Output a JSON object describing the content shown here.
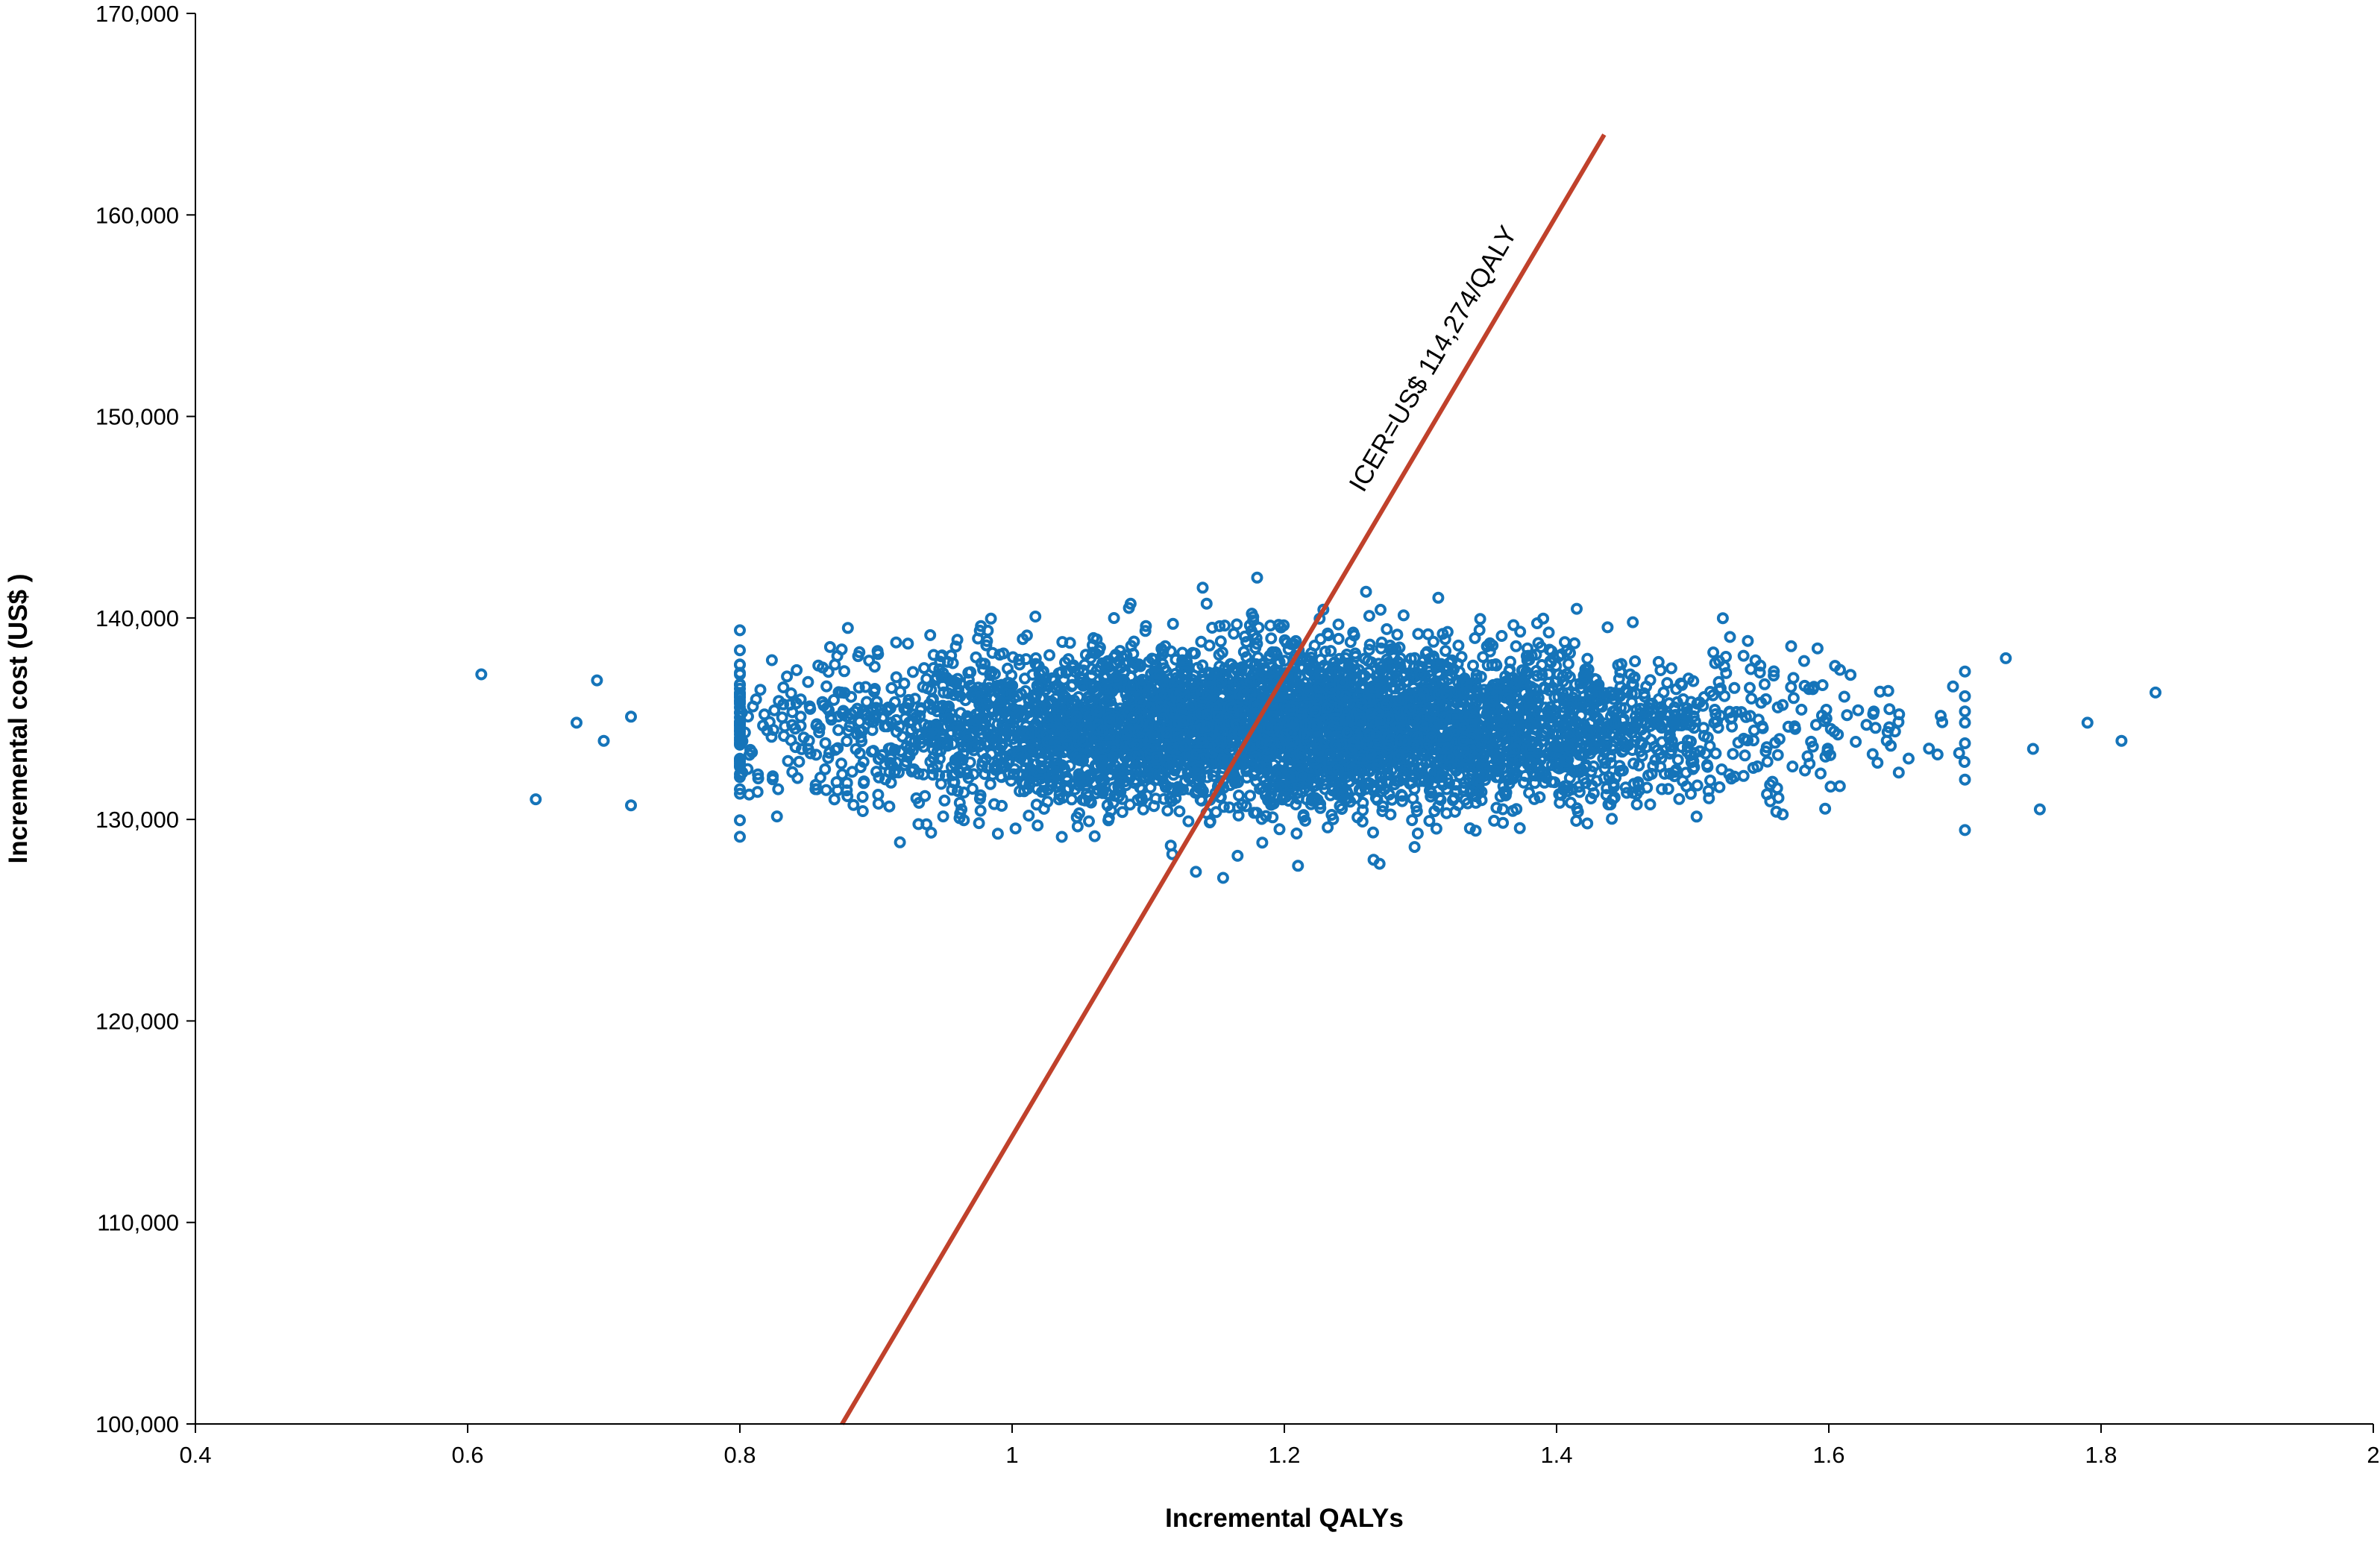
{
  "chart_data": {
    "type": "scatter",
    "title": "",
    "xlabel": "Incremental QALYs",
    "ylabel": "Incremental cost (US$ )",
    "xlim": [
      0.4,
      2.0
    ],
    "ylim": [
      100000,
      170000
    ],
    "x_ticks": [
      0.4,
      0.6,
      0.8,
      1.0,
      1.2,
      1.4,
      1.6,
      1.8,
      2.0
    ],
    "x_tick_labels": [
      "0.4",
      "0.6",
      "0.8",
      "1",
      "1.2",
      "1.4",
      "1.6",
      "1.8",
      "2"
    ],
    "y_ticks": [
      100000,
      110000,
      120000,
      130000,
      140000,
      150000,
      160000,
      170000
    ],
    "y_tick_labels": [
      "100,000",
      "110,000",
      "120,000",
      "130,000",
      "140,000",
      "150,000",
      "160,000",
      "170,000"
    ],
    "grid": false,
    "legend": "none",
    "colors": {
      "points": "#1574b9",
      "icer_line": "#c0412b",
      "axis": "#000000"
    },
    "icer_line": {
      "label": "ICER=US$ 114,274/QALY",
      "slope": 114274,
      "x_start": 0.875,
      "x_end": 1.435
    },
    "scatter_cloud": {
      "n_points": 5000,
      "x_mean": 1.2,
      "x_sd": 0.17,
      "y_mean": 134600,
      "y_sd": 1950
    },
    "notable_points": [
      {
        "x": 0.61,
        "y": 137200
      },
      {
        "x": 0.65,
        "y": 131000
      },
      {
        "x": 0.68,
        "y": 134800
      },
      {
        "x": 0.695,
        "y": 136900
      },
      {
        "x": 0.7,
        "y": 133900
      },
      {
        "x": 0.72,
        "y": 130700
      },
      {
        "x": 0.72,
        "y": 135100
      },
      {
        "x": 1.73,
        "y": 138000
      },
      {
        "x": 1.75,
        "y": 133500
      },
      {
        "x": 1.755,
        "y": 130500
      },
      {
        "x": 1.79,
        "y": 134800
      },
      {
        "x": 1.815,
        "y": 133900
      },
      {
        "x": 1.84,
        "y": 136300
      },
      {
        "x": 1.18,
        "y": 142000
      },
      {
        "x": 1.14,
        "y": 141500
      },
      {
        "x": 1.26,
        "y": 141300
      },
      {
        "x": 1.155,
        "y": 127100
      },
      {
        "x": 1.135,
        "y": 127400
      },
      {
        "x": 1.21,
        "y": 127700
      },
      {
        "x": 1.27,
        "y": 127800
      }
    ]
  }
}
